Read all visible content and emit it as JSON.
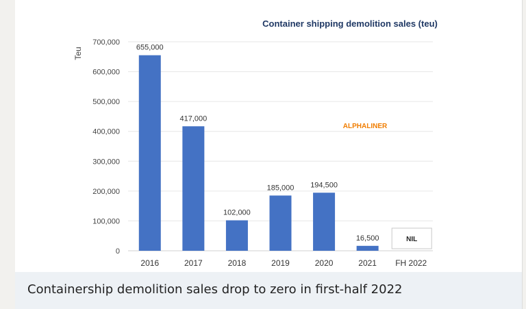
{
  "chart_data": {
    "type": "bar",
    "title": "Container shipping demolition sales (teu)",
    "ylabel": "Teu",
    "xlabel": "",
    "categories": [
      "2016",
      "2017",
      "2018",
      "2019",
      "2020",
      "2021",
      "FH 2022"
    ],
    "values": [
      655000,
      417000,
      102000,
      185000,
      194500,
      16500,
      0
    ],
    "data_labels": [
      "655,000",
      "417,000",
      "102,000",
      "185,000",
      "194,500",
      "16,500",
      "NIL"
    ],
    "ylim": [
      0,
      700000
    ],
    "yticks": [
      0,
      100000,
      200000,
      300000,
      400000,
      500000,
      600000,
      700000
    ],
    "ytick_labels": [
      "0",
      "100,000",
      "200,000",
      "300,000",
      "400,000",
      "500,000",
      "600,000",
      "700,000"
    ],
    "grid": true,
    "annotation": "ALPHALINER",
    "bar_color": "#4472c4",
    "annotation_color": "#f07d00",
    "title_color": "#1f3864"
  },
  "caption": "Containership demolition sales drop to zero in first-half 2022"
}
